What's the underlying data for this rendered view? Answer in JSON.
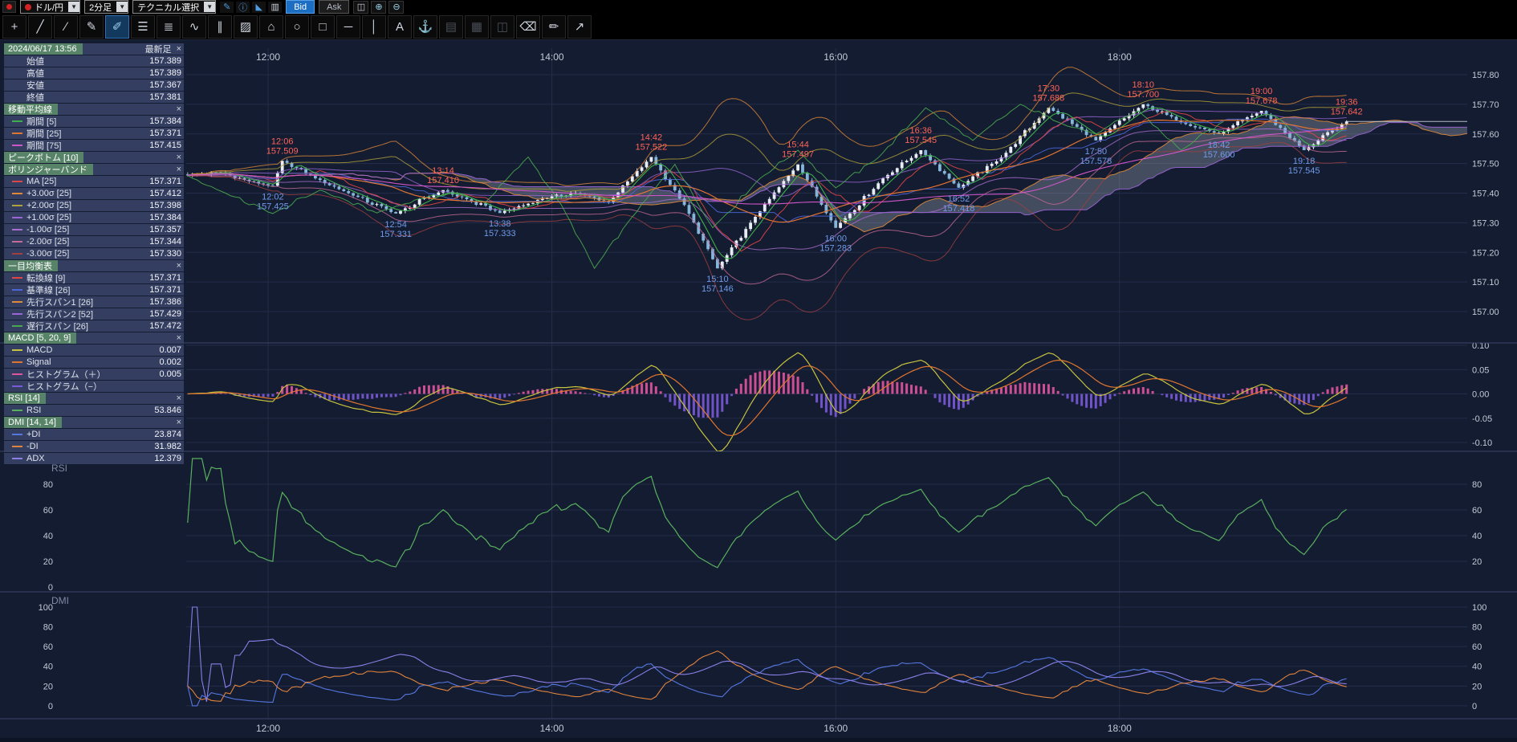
{
  "colors": {
    "bg": "#0d1424",
    "chart_bg": "#141c31",
    "toolbar_bg": "#000000",
    "grid": "#232c49",
    "divider": "#3a4566",
    "axis_text": "#c3c9d6",
    "panel_title_text": "#7e88a2",
    "candle_up": "#e8edf4",
    "candle_down": "#85b6da",
    "annotation_high": "#ff6358",
    "annotation_low": "#6f9bea",
    "cloud": "rgba(195,200,214,0.28)",
    "last_price_line": "#cfd5de",
    "accent_blue": "#1b6ec2"
  },
  "toolbar": {
    "pair_label": "ドル/円",
    "timeframe_label": "2分足",
    "technical_label": "テクニカル選択",
    "bid_label": "Bid",
    "ask_label": "Ask",
    "quick_icons": [
      {
        "name": "draw-pencil-icon",
        "glyph": "✎",
        "color": "#4f9be0"
      },
      {
        "name": "info-icon",
        "glyph": "ⓘ",
        "color": "#4f9be0"
      },
      {
        "name": "area-chart-icon",
        "glyph": "◣",
        "color": "#4f9be0"
      },
      {
        "name": "candlestick-icon",
        "glyph": "▥",
        "color": "#c8d0da"
      }
    ],
    "right_icons": [
      {
        "name": "chart-range-icon",
        "glyph": "◫",
        "color": "#c8d0da"
      },
      {
        "name": "zoom-in-icon",
        "glyph": "⊕",
        "color": "#9fd6ef"
      },
      {
        "name": "zoom-out-icon",
        "glyph": "⊖",
        "color": "#9fd6ef"
      }
    ],
    "draw_tools": [
      {
        "name": "crosshair-tool",
        "glyph": "+"
      },
      {
        "name": "trendline-tool",
        "glyph": "╱"
      },
      {
        "name": "ray-tool",
        "glyph": "∕"
      },
      {
        "name": "freehand-line-tool",
        "glyph": "✎"
      },
      {
        "name": "marker-tool",
        "glyph": "✐",
        "state": "active"
      },
      {
        "name": "horizontal-lines-tool",
        "glyph": "☰"
      },
      {
        "name": "fibonacci-tool",
        "glyph": "≣"
      },
      {
        "name": "wave-tool",
        "glyph": "∿"
      },
      {
        "name": "channel-tool",
        "glyph": "∥"
      },
      {
        "name": "hatch-tool",
        "glyph": "▨"
      },
      {
        "name": "polygon-tool",
        "glyph": "⌂"
      },
      {
        "name": "ellipse-tool",
        "glyph": "○"
      },
      {
        "name": "rectangle-tool",
        "glyph": "□"
      },
      {
        "name": "horizontal-line-tool",
        "glyph": "─"
      },
      {
        "name": "vertical-line-tool",
        "glyph": "│"
      },
      {
        "name": "text-tool",
        "glyph": "A"
      },
      {
        "name": "anchor-tool",
        "glyph": "⚓"
      },
      {
        "name": "image-tool",
        "glyph": "▤",
        "state": "disabled"
      },
      {
        "name": "clone-tool",
        "glyph": "▦",
        "state": "disabled"
      },
      {
        "name": "layers-tool",
        "glyph": "◫",
        "state": "disabled"
      },
      {
        "name": "eraser-tool",
        "glyph": "⌫"
      },
      {
        "name": "edit-settings-tool",
        "glyph": "✏"
      },
      {
        "name": "share-tool",
        "glyph": "↗"
      }
    ]
  },
  "indicator_panel": {
    "date": "2024/06/17 13:56",
    "latest_label": "最新足",
    "rows": [
      {
        "kind": "value",
        "label": "始値",
        "value": "157.389"
      },
      {
        "kind": "value",
        "label": "高値",
        "value": "157.389"
      },
      {
        "kind": "value",
        "label": "安値",
        "value": "157.367"
      },
      {
        "kind": "value",
        "label": "終値",
        "value": "157.381"
      },
      {
        "kind": "header",
        "label": "移動平均線"
      },
      {
        "kind": "series",
        "label": "期間 [5]",
        "value": "157.384",
        "swatch": "#3fae4c"
      },
      {
        "kind": "series",
        "label": "期間 [25]",
        "value": "157.371",
        "swatch": "#e0762e"
      },
      {
        "kind": "series",
        "label": "期間 [75]",
        "value": "157.415",
        "swatch": "#cf56c8"
      },
      {
        "kind": "header",
        "label": "ピークボトム [10]"
      },
      {
        "kind": "header",
        "label": "ボリンジャーバンド"
      },
      {
        "kind": "series",
        "label": "MA [25]",
        "value": "157.371",
        "swatch": "#d94848"
      },
      {
        "kind": "series",
        "label": "+3.00σ [25]",
        "value": "157.412",
        "swatch": "#e08a38"
      },
      {
        "kind": "series",
        "label": "+2.00σ [25]",
        "value": "157.398",
        "swatch": "#b3a23a"
      },
      {
        "kind": "series",
        "label": "+1.00σ [25]",
        "value": "157.384",
        "swatch": "#9a66d6"
      },
      {
        "kind": "series",
        "label": "-1.00σ [25]",
        "value": "157.357",
        "swatch": "#a96fd0"
      },
      {
        "kind": "series",
        "label": "-2.00σ [25]",
        "value": "157.344",
        "swatch": "#c66a96"
      },
      {
        "kind": "series",
        "label": "-3.00σ [25]",
        "value": "157.330",
        "swatch": "#a04040"
      },
      {
        "kind": "header",
        "label": "一目均衡表"
      },
      {
        "kind": "series",
        "label": "転換線 [9]",
        "value": "157.371",
        "swatch": "#e04545"
      },
      {
        "kind": "series",
        "label": "基準線 [26]",
        "value": "157.371",
        "swatch": "#4a66d8"
      },
      {
        "kind": "series",
        "label": "先行スパン1 [26]",
        "value": "157.386",
        "swatch": "#e08a38"
      },
      {
        "kind": "series",
        "label": "先行スパン2 [52]",
        "value": "157.429",
        "swatch": "#9a66d6"
      },
      {
        "kind": "series",
        "label": "遅行スパン [26]",
        "value": "157.472",
        "swatch": "#49a84f"
      },
      {
        "kind": "header",
        "label": "MACD [5, 20, 9]"
      },
      {
        "kind": "series",
        "label": "MACD",
        "value": "0.007",
        "swatch": "#c6c23e"
      },
      {
        "kind": "series",
        "label": "Signal",
        "value": "0.002",
        "swatch": "#e0762e"
      },
      {
        "kind": "series",
        "label": "ヒストグラム（＋）",
        "value": "0.005",
        "swatch": "#e0549e"
      },
      {
        "kind": "series",
        "label": "ヒストグラム（−）",
        "value": "",
        "swatch": "#7a5ad8"
      },
      {
        "kind": "header",
        "label": "RSI [14]"
      },
      {
        "kind": "series",
        "label": "RSI",
        "value": "53.846",
        "swatch": "#58b05e"
      },
      {
        "kind": "header",
        "label": "DMI [14, 14]"
      },
      {
        "kind": "series",
        "label": "+DI",
        "value": "23.874",
        "swatch": "#5577e0"
      },
      {
        "kind": "series",
        "label": "-DI",
        "value": "31.982",
        "swatch": "#e0833c"
      },
      {
        "kind": "series",
        "label": "ADX",
        "value": "12.379",
        "swatch": "#8a7fe6"
      }
    ]
  },
  "chart_data": {
    "type": "candlestick",
    "instrument": "ドル/円",
    "interval": "2分足",
    "time_axis": {
      "labels": [
        "12:00",
        "14:00",
        "16:00",
        "18:00"
      ],
      "start": "11:26",
      "end_data": "19:36",
      "end_plot": "20:27"
    },
    "price_axis": {
      "ticks": [
        157.0,
        157.1,
        157.2,
        157.3,
        157.4,
        157.5,
        157.6,
        157.7,
        157.8
      ],
      "min": 156.9,
      "max": 157.89
    },
    "ohlc_latest": {
      "open": 157.389,
      "high": 157.389,
      "low": 157.367,
      "close": 157.381
    },
    "key_points": [
      {
        "time": "11:26",
        "price": 157.46,
        "type": "path"
      },
      {
        "time": "11:40",
        "price": 157.47,
        "type": "path"
      },
      {
        "time": "11:52",
        "price": 157.44,
        "type": "path"
      },
      {
        "time": "12:02",
        "price": 157.425,
        "type": "low",
        "label": true
      },
      {
        "time": "12:06",
        "price": 157.509,
        "type": "high",
        "label": true
      },
      {
        "time": "12:20",
        "price": 157.45,
        "type": "path"
      },
      {
        "time": "12:34",
        "price": 157.4,
        "type": "path"
      },
      {
        "time": "12:54",
        "price": 157.331,
        "type": "low",
        "label": true
      },
      {
        "time": "13:14",
        "price": 157.41,
        "type": "high",
        "label": true
      },
      {
        "time": "13:38",
        "price": 157.333,
        "type": "low",
        "label": true
      },
      {
        "time": "13:56",
        "price": 157.381,
        "type": "path"
      },
      {
        "time": "14:10",
        "price": 157.4,
        "type": "path"
      },
      {
        "time": "14:24",
        "price": 157.37,
        "type": "path"
      },
      {
        "time": "14:42",
        "price": 157.522,
        "type": "high",
        "label": true
      },
      {
        "time": "14:56",
        "price": 157.36,
        "type": "path"
      },
      {
        "time": "15:10",
        "price": 157.146,
        "type": "low",
        "label": true
      },
      {
        "time": "15:26",
        "price": 157.32,
        "type": "path"
      },
      {
        "time": "15:44",
        "price": 157.497,
        "type": "high",
        "label": true
      },
      {
        "time": "16:00",
        "price": 157.283,
        "type": "low",
        "label": true
      },
      {
        "time": "16:20",
        "price": 157.45,
        "type": "path"
      },
      {
        "time": "16:36",
        "price": 157.545,
        "type": "high",
        "label": true
      },
      {
        "time": "16:52",
        "price": 157.418,
        "type": "low",
        "label": true
      },
      {
        "time": "17:10",
        "price": 157.52,
        "type": "path"
      },
      {
        "time": "17:30",
        "price": 157.688,
        "type": "high",
        "label": true
      },
      {
        "time": "17:50",
        "price": 157.578,
        "type": "low",
        "label": true
      },
      {
        "time": "18:10",
        "price": 157.7,
        "type": "high",
        "label": true
      },
      {
        "time": "18:26",
        "price": 157.64,
        "type": "path"
      },
      {
        "time": "18:42",
        "price": 157.6,
        "type": "low",
        "label": true
      },
      {
        "time": "19:00",
        "price": 157.678,
        "type": "high",
        "label": true
      },
      {
        "time": "19:18",
        "price": 157.545,
        "type": "low",
        "label": true
      },
      {
        "time": "19:36",
        "price": 157.642,
        "type": "last",
        "label": true
      }
    ],
    "overlays": [
      {
        "name": "MA5",
        "period": 5,
        "color": "#3fae4c"
      },
      {
        "name": "MA25",
        "period": 25,
        "color": "#e0762e"
      },
      {
        "name": "MA75",
        "period": 75,
        "color": "#cf56c8"
      },
      {
        "name": "BB_MA25",
        "color": "#d94848"
      },
      {
        "name": "BB+1",
        "k": 1,
        "color": "#9a66d6"
      },
      {
        "name": "BB+2",
        "k": 2,
        "color": "#b3a23a"
      },
      {
        "name": "BB+3",
        "k": 3,
        "color": "#e08a38"
      },
      {
        "name": "BB-1",
        "k": -1,
        "color": "#a96fd0"
      },
      {
        "name": "BB-2",
        "k": -2,
        "color": "#c66a96"
      },
      {
        "name": "BB-3",
        "k": -3,
        "color": "#a04040"
      },
      {
        "name": "tenkan",
        "color": "#e04545"
      },
      {
        "name": "kijun",
        "color": "#4a66d8"
      },
      {
        "name": "senkouA",
        "color": "#e08a38"
      },
      {
        "name": "senkouB",
        "color": "#9a66d6"
      },
      {
        "name": "chikou",
        "color": "#49a84f"
      }
    ],
    "sub_panels": {
      "macd": {
        "title": "MACD",
        "params": "[5, 20, 9]",
        "ticks": [
          0.1,
          0.05,
          0.0,
          -0.05,
          -0.1
        ],
        "macd_color": "#c6c23e",
        "signal_color": "#e0762e",
        "hist_pos_color": "#e0549e",
        "hist_neg_color": "#7a5ad8",
        "latest": {
          "macd": 0.007,
          "signal": 0.002,
          "hist": 0.005
        }
      },
      "rsi": {
        "title": "RSI",
        "params": "[14]",
        "ticks": [
          80,
          60,
          40,
          20
        ],
        "color": "#58b05e",
        "latest": 53.846
      },
      "dmi": {
        "title": "DMI",
        "params": "[14, 14]",
        "ticks": [
          100,
          80,
          60,
          40,
          20,
          0
        ],
        "plus_di_color": "#5577e0",
        "minus_di_color": "#e0833c",
        "adx_color": "#8a7fe6",
        "latest": {
          "plus_di": 23.874,
          "minus_di": 31.982,
          "adx": 12.379
        }
      }
    }
  }
}
